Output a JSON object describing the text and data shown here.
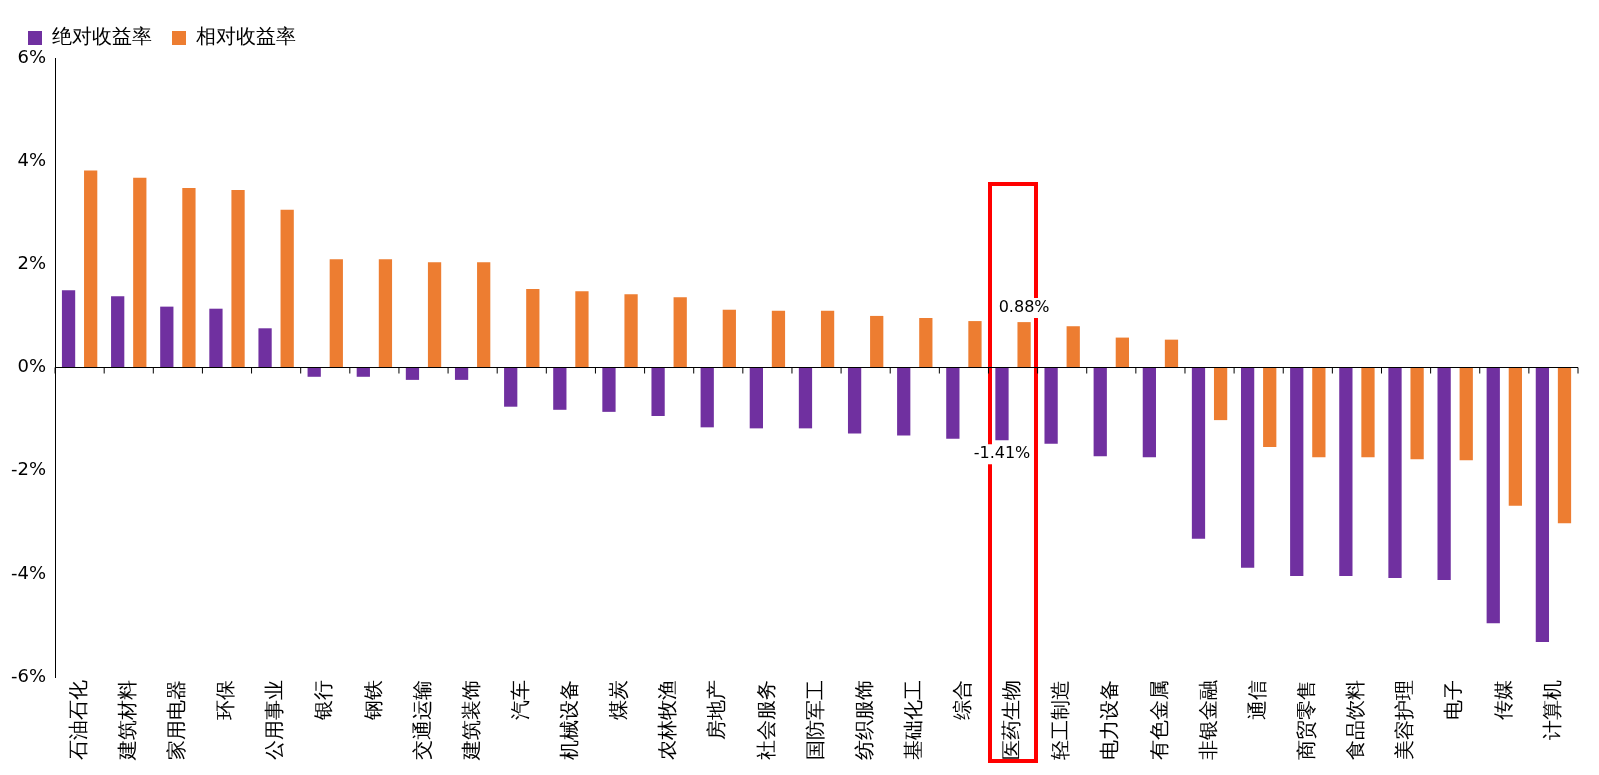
{
  "chart_data": {
    "type": "bar",
    "categories": [
      "石油石化",
      "建筑材料",
      "家用电器",
      "环保",
      "公用事业",
      "银行",
      "钢铁",
      "交通运输",
      "建筑装饰",
      "汽车",
      "机械设备",
      "煤炭",
      "农林牧渔",
      "房地产",
      "社会服务",
      "国防军工",
      "纺织服饰",
      "基础化工",
      "综合",
      "医药生物",
      "轻工制造",
      "电力设备",
      "有色金属",
      "非银金融",
      "通信",
      "商贸零售",
      "食品饮料",
      "美容护理",
      "电子",
      "传媒",
      "计算机"
    ],
    "series": [
      {
        "name": "绝对收益率",
        "color": "#7030a0",
        "values": [
          1.5,
          1.38,
          1.18,
          1.14,
          0.76,
          -0.18,
          -0.18,
          -0.24,
          -0.24,
          -0.76,
          -0.82,
          -0.86,
          -0.94,
          -1.16,
          -1.18,
          -1.18,
          -1.28,
          -1.32,
          -1.38,
          -1.41,
          -1.48,
          -1.72,
          -1.74,
          -3.32,
          -3.88,
          -4.04,
          -4.04,
          -4.08,
          -4.12,
          -4.96,
          -5.32
        ],
        "value_labels": [
          null,
          null,
          null,
          null,
          null,
          null,
          null,
          null,
          null,
          null,
          null,
          null,
          null,
          null,
          null,
          null,
          null,
          null,
          null,
          "-1.41%",
          null,
          null,
          null,
          null,
          null,
          null,
          null,
          null,
          null,
          null,
          null
        ]
      },
      {
        "name": "相对收益率",
        "color": "#ed7d31",
        "values": [
          3.82,
          3.68,
          3.48,
          3.44,
          3.06,
          2.1,
          2.1,
          2.04,
          2.04,
          1.52,
          1.48,
          1.42,
          1.36,
          1.12,
          1.1,
          1.1,
          1.0,
          0.96,
          0.9,
          0.88,
          0.8,
          0.58,
          0.54,
          -1.02,
          -1.54,
          -1.74,
          -1.74,
          -1.78,
          -1.8,
          -2.68,
          -3.02
        ],
        "value_labels": [
          null,
          null,
          null,
          null,
          null,
          null,
          null,
          null,
          null,
          null,
          null,
          null,
          null,
          null,
          null,
          null,
          null,
          null,
          null,
          "0.88%",
          null,
          null,
          null,
          null,
          null,
          null,
          null,
          null,
          null,
          null,
          null
        ]
      }
    ],
    "ylim": [
      -6,
      6
    ],
    "yticks": [
      {
        "value": -6,
        "label": "-6%"
      },
      {
        "value": -4,
        "label": "-4%"
      },
      {
        "value": -2,
        "label": "-2%"
      },
      {
        "value": 0,
        "label": "0%"
      },
      {
        "value": 2,
        "label": "2%"
      },
      {
        "value": 4,
        "label": "4%"
      },
      {
        "value": 6,
        "label": "6%"
      }
    ],
    "legend": "top left"
  }
}
